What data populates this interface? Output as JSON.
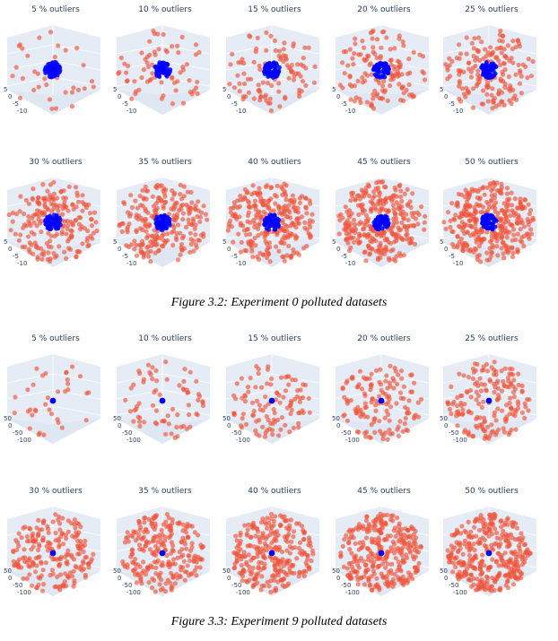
{
  "figures": [
    {
      "caption": "Figure 3.2: Experiment 0 polluted datasets",
      "inlier_color": "#0000ff",
      "outlier_color": "#ef553b",
      "axis_ticks": [
        "5",
        "0",
        "-5",
        "-10"
      ],
      "panels": [
        {
          "title": "5 % outliers",
          "outlier_pct": 5
        },
        {
          "title": "10 % outliers",
          "outlier_pct": 10
        },
        {
          "title": "15 % outliers",
          "outlier_pct": 15
        },
        {
          "title": "20 % outliers",
          "outlier_pct": 20
        },
        {
          "title": "25 % outliers",
          "outlier_pct": 25
        },
        {
          "title": "30 % outliers",
          "outlier_pct": 30
        },
        {
          "title": "35 % outliers",
          "outlier_pct": 35
        },
        {
          "title": "40 % outliers",
          "outlier_pct": 40
        },
        {
          "title": "45 % outliers",
          "outlier_pct": 45
        },
        {
          "title": "50 % outliers",
          "outlier_pct": 50
        }
      ]
    },
    {
      "caption": "Figure 3.3: Experiment 9 polluted datasets",
      "inlier_color": "#0000ff",
      "outlier_color": "#ef553b",
      "axis_ticks": [
        "50",
        "0",
        "-50",
        "-100"
      ],
      "panels": [
        {
          "title": "5 % outliers",
          "outlier_pct": 5
        },
        {
          "title": "10 % outliers",
          "outlier_pct": 10
        },
        {
          "title": "15 % outliers",
          "outlier_pct": 15
        },
        {
          "title": "20 % outliers",
          "outlier_pct": 20
        },
        {
          "title": "25 % outliers",
          "outlier_pct": 25
        },
        {
          "title": "30 % outliers",
          "outlier_pct": 30
        },
        {
          "title": "35 % outliers",
          "outlier_pct": 35
        },
        {
          "title": "40 % outliers",
          "outlier_pct": 40
        },
        {
          "title": "45 % outliers",
          "outlier_pct": 45
        },
        {
          "title": "50 % outliers",
          "outlier_pct": 50
        }
      ]
    }
  ]
}
